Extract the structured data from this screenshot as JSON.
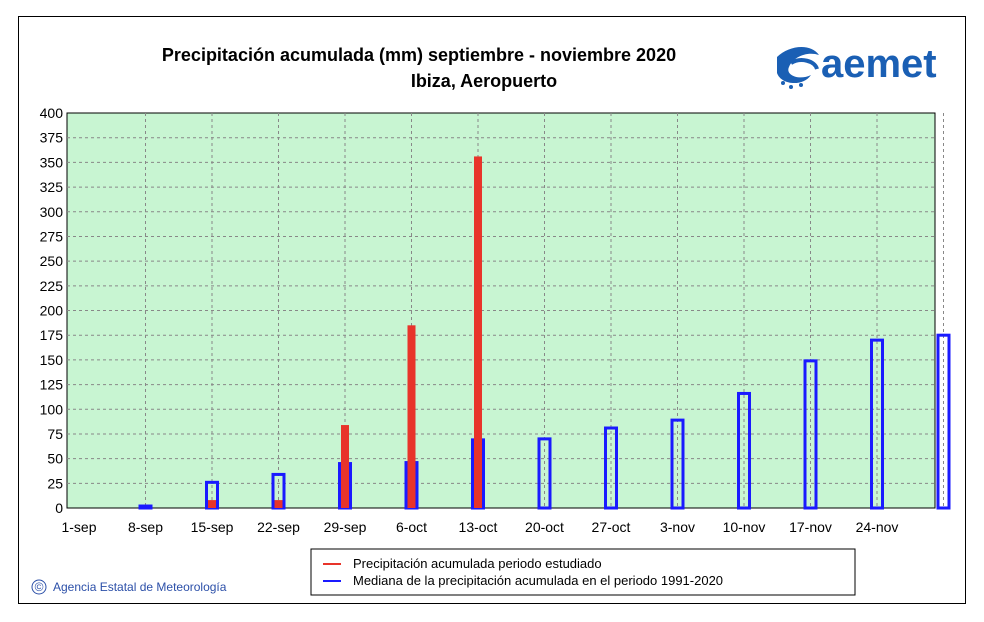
{
  "chart_data": {
    "type": "bar",
    "title": "Precipitación acumulada (mm) septiembre - noviembre 2020",
    "subtitle": "Ibiza, Aeropuerto",
    "categories": [
      "1-sep",
      "8-sep",
      "15-sep",
      "22-sep",
      "29-sep",
      "6-oct",
      "13-oct",
      "20-oct",
      "27-oct",
      "3-nov",
      "10-nov",
      "17-nov",
      "24-nov",
      ""
    ],
    "series": [
      {
        "name": "Precipitación acumulada periodo estudiado",
        "color": "#e8342a",
        "values": [
          null,
          0,
          8,
          8,
          84,
          185,
          356,
          null,
          null,
          null,
          null,
          null,
          null,
          null
        ]
      },
      {
        "name": "Mediana de la precipitación acumulada en el periodo 1991-2020",
        "color": "#1a1aff",
        "values": [
          null,
          2,
          26,
          34,
          45,
          46,
          69,
          70,
          81,
          89,
          116,
          149,
          170,
          175
        ]
      }
    ],
    "ylim": [
      0,
      400
    ],
    "yticks": [
      0,
      25,
      50,
      75,
      100,
      125,
      150,
      175,
      200,
      225,
      250,
      275,
      300,
      325,
      350,
      375,
      400
    ],
    "grid": true,
    "plot_background": "#c8f5d2",
    "legend_position": "bottom"
  },
  "logo": {
    "text": "aemet",
    "icon": "aemet-swirl-icon"
  },
  "credit": {
    "symbol": "©",
    "text": "Agencia Estatal de Meteorología"
  }
}
